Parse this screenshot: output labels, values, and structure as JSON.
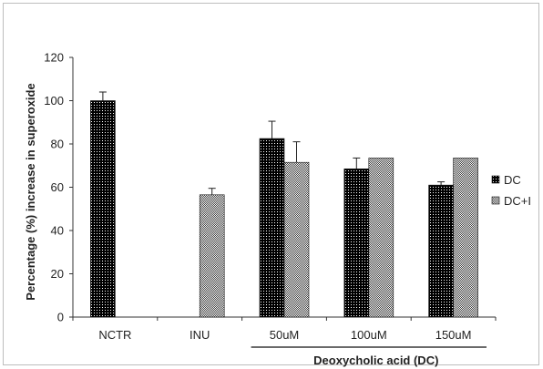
{
  "chart_data": {
    "type": "bar",
    "categories": [
      "NCTR",
      "INU",
      "50uM",
      "100uM",
      "150uM"
    ],
    "series": [
      {
        "name": "DC",
        "values": [
          100,
          null,
          82.5,
          68.5,
          61
        ],
        "errors": [
          4,
          null,
          8,
          5,
          1.5
        ],
        "pattern": "dots-on-black"
      },
      {
        "name": "DC+I",
        "values": [
          null,
          56.5,
          71.5,
          73.5,
          73.5
        ],
        "errors": [
          null,
          3,
          9.5,
          null,
          null
        ],
        "pattern": "checker-grey"
      }
    ],
    "title": "",
    "xlabel": "",
    "ylabel": "Percentage (%) increase in superoxide",
    "ylim": [
      0,
      120
    ],
    "yticks": [
      0,
      20,
      40,
      60,
      80,
      100,
      120
    ],
    "group_label": {
      "text": "Deoxycholic acid (DC)",
      "categories": [
        "50uM",
        "100uM",
        "150uM"
      ]
    },
    "grid": false,
    "legend": {
      "position": "right",
      "entries": [
        "DC",
        "DC+I"
      ]
    }
  }
}
